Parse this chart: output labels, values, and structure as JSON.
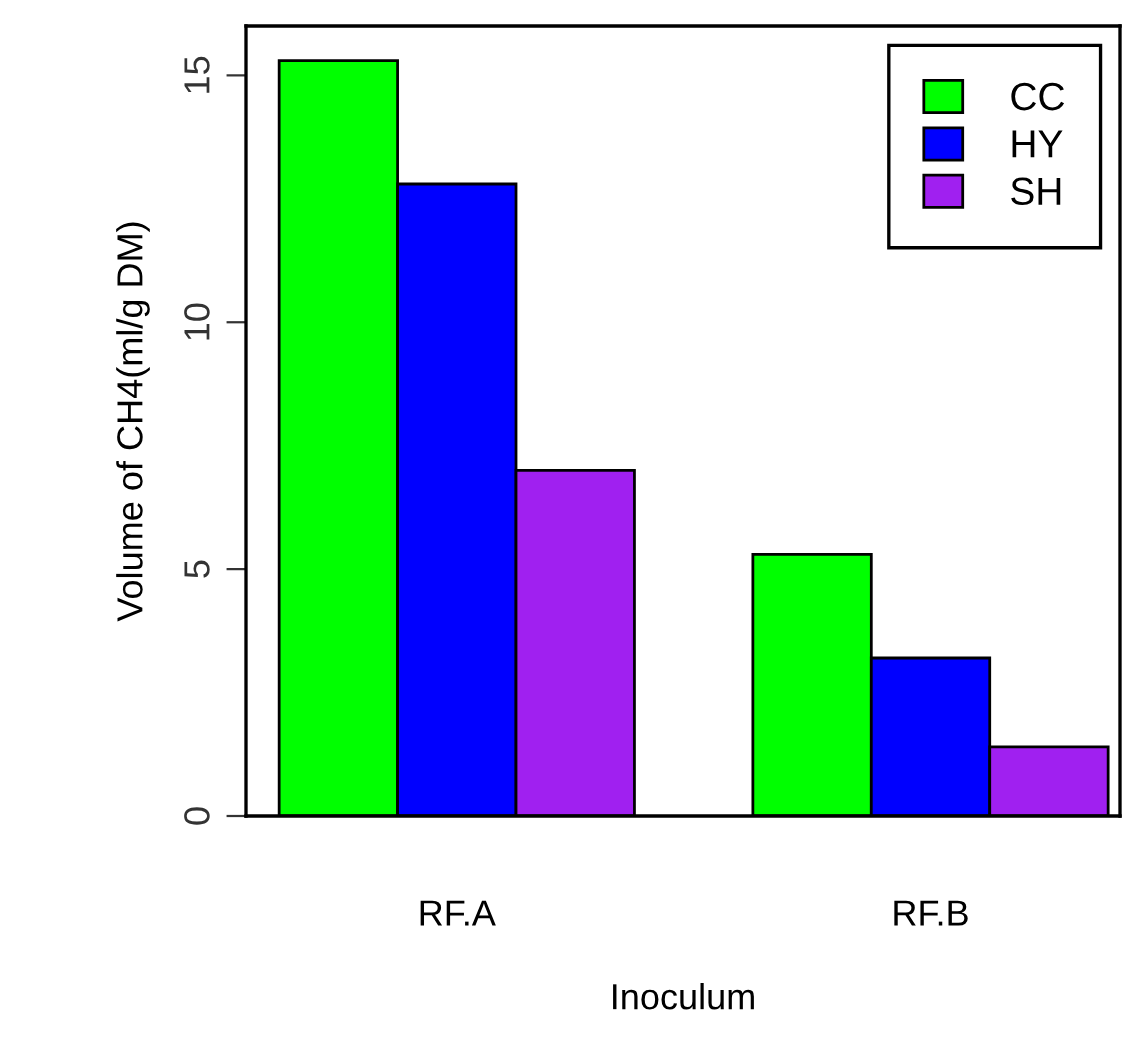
{
  "chart_data": {
    "type": "bar",
    "xlabel": "Inoculum",
    "ylabel": "Volume of CH4(ml/g DM)",
    "categories": [
      "RF.A",
      "RF.B"
    ],
    "series": [
      {
        "name": "CC",
        "color": "#00ff00",
        "values": [
          15.3,
          5.3
        ]
      },
      {
        "name": "HY",
        "color": "#0000ff",
        "values": [
          12.8,
          3.2
        ]
      },
      {
        "name": "SH",
        "color": "#a020f0",
        "values": [
          7.0,
          1.4
        ]
      }
    ],
    "ylim": [
      0,
      16
    ],
    "yticks": [
      0,
      5,
      10,
      15
    ],
    "grid": false,
    "legend": "top right"
  }
}
